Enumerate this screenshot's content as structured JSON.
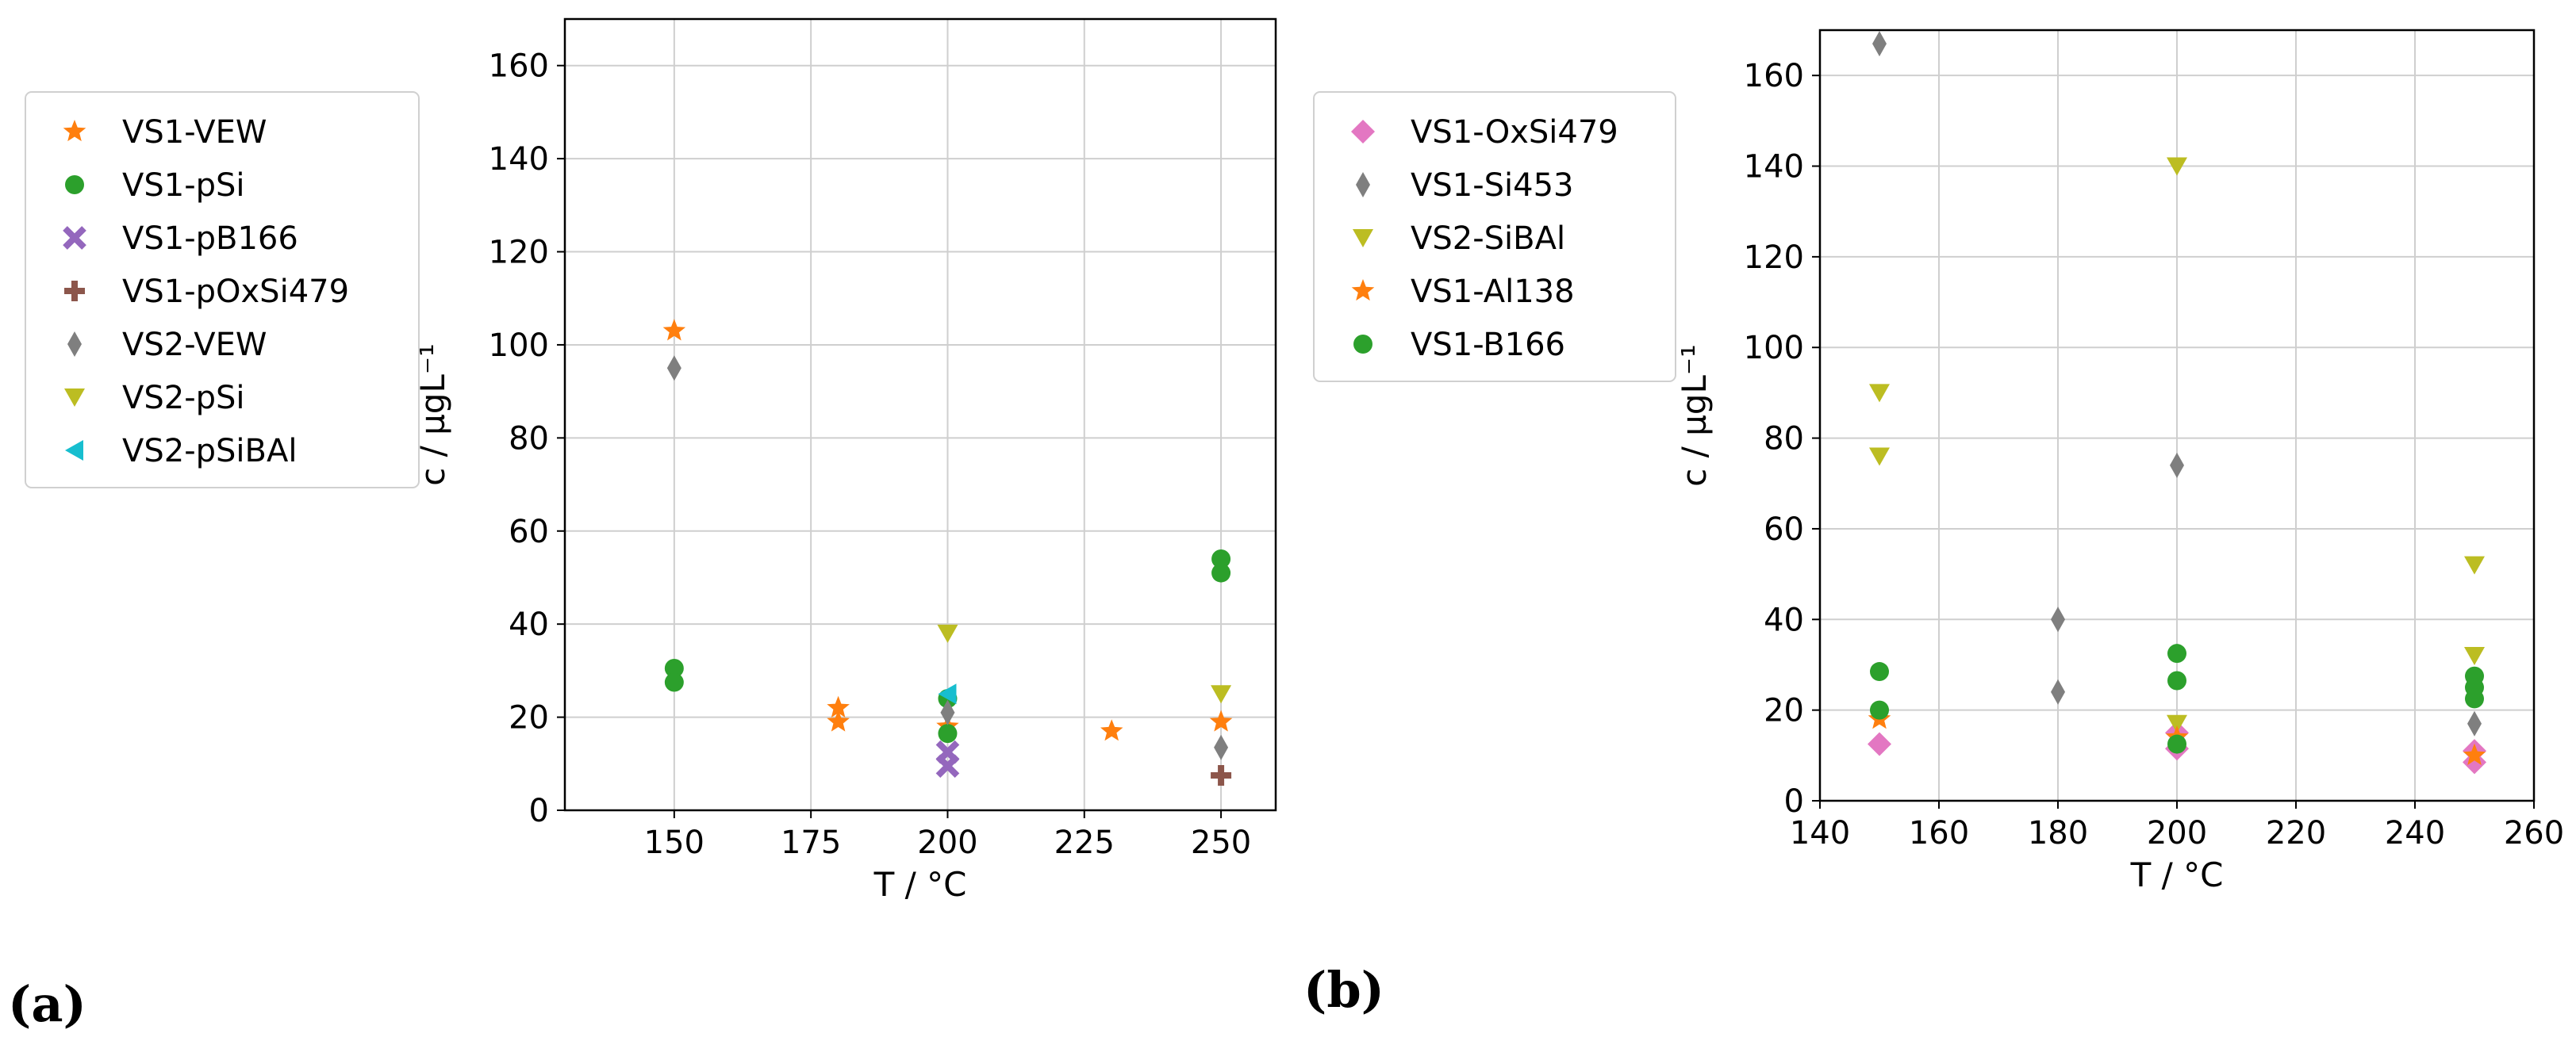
{
  "chart_data": [
    {
      "type": "scatter",
      "panel": "(a)",
      "xlabel": "T / °C",
      "ylabel": "c / µgL⁻¹",
      "xlim": [
        130,
        260
      ],
      "ylim": [
        0,
        170
      ],
      "xticks": [
        150,
        175,
        200,
        225,
        250
      ],
      "yticks": [
        0,
        20,
        40,
        60,
        80,
        100,
        120,
        140,
        160
      ],
      "grid": true,
      "legend_position": "outside-left",
      "series": [
        {
          "name": "VS1-VEW",
          "marker": "star",
          "color": "#ff7f0e",
          "points": [
            [
              150,
              103
            ],
            [
              180,
              22
            ],
            [
              180,
              19
            ],
            [
              200,
              18
            ],
            [
              230,
              17
            ],
            [
              250,
              19
            ]
          ]
        },
        {
          "name": "VS1-pSi",
          "marker": "circle",
          "color": "#2ca02c",
          "points": [
            [
              150,
              30.5
            ],
            [
              150,
              27.5
            ],
            [
              200,
              24
            ],
            [
              200,
              16.5
            ],
            [
              250,
              54
            ],
            [
              250,
              51
            ]
          ]
        },
        {
          "name": "VS1-pB166",
          "marker": "x",
          "color": "#9467bd",
          "points": [
            [
              200,
              12.5
            ],
            [
              200,
              9.5
            ]
          ]
        },
        {
          "name": "VS1-pOxSi479",
          "marker": "plus",
          "color": "#8c564b",
          "points": [
            [
              250,
              7.5
            ]
          ]
        },
        {
          "name": "VS2-VEW",
          "marker": "thin-diamond",
          "color": "#7f7f7f",
          "points": [
            [
              150,
              95
            ],
            [
              200,
              21
            ],
            [
              250,
              13.5
            ]
          ]
        },
        {
          "name": "VS2-pSi",
          "marker": "triangle-down",
          "color": "#bcbd22",
          "points": [
            [
              200,
              38
            ],
            [
              250,
              25
            ]
          ]
        },
        {
          "name": "VS2-pSiBAl",
          "marker": "triangle-left",
          "color": "#17becf",
          "points": [
            [
              200,
              25
            ]
          ]
        }
      ]
    },
    {
      "type": "scatter",
      "panel": "(b)",
      "xlabel": "T / °C",
      "ylabel": "c / µgL⁻¹",
      "xlim": [
        140,
        260
      ],
      "ylim": [
        0,
        170
      ],
      "xticks": [
        140,
        160,
        180,
        200,
        220,
        240,
        260
      ],
      "yticks": [
        0,
        20,
        40,
        60,
        80,
        100,
        120,
        140,
        160
      ],
      "grid": true,
      "legend_position": "outside-left",
      "series": [
        {
          "name": "VS1-OxSi479",
          "marker": "diamond",
          "color": "#e377c2",
          "points": [
            [
              150,
              12.5
            ],
            [
              200,
              15
            ],
            [
              200,
              11.5
            ],
            [
              250,
              11
            ],
            [
              250,
              8.5
            ]
          ]
        },
        {
          "name": "VS1-Si453",
          "marker": "thin-diamond",
          "color": "#7f7f7f",
          "points": [
            [
              150,
              167
            ],
            [
              180,
              40
            ],
            [
              180,
              24
            ],
            [
              200,
              74
            ],
            [
              200,
              13
            ],
            [
              250,
              17
            ]
          ]
        },
        {
          "name": "VS2-SiBAl",
          "marker": "triangle-down",
          "color": "#bcbd22",
          "points": [
            [
              150,
              90
            ],
            [
              150,
              76
            ],
            [
              200,
              140
            ],
            [
              200,
              17
            ],
            [
              250,
              52
            ],
            [
              250,
              32
            ]
          ]
        },
        {
          "name": "VS1-Al138",
          "marker": "star",
          "color": "#ff7f0e",
          "points": [
            [
              150,
              18
            ],
            [
              200,
              14
            ],
            [
              250,
              10
            ]
          ]
        },
        {
          "name": "VS1-B166",
          "marker": "circle",
          "color": "#2ca02c",
          "points": [
            [
              150,
              28.5
            ],
            [
              150,
              20
            ],
            [
              200,
              32.5
            ],
            [
              200,
              26.5
            ],
            [
              200,
              12.5
            ],
            [
              250,
              27.5
            ],
            [
              250,
              25
            ],
            [
              250,
              22.5
            ]
          ]
        }
      ]
    }
  ]
}
